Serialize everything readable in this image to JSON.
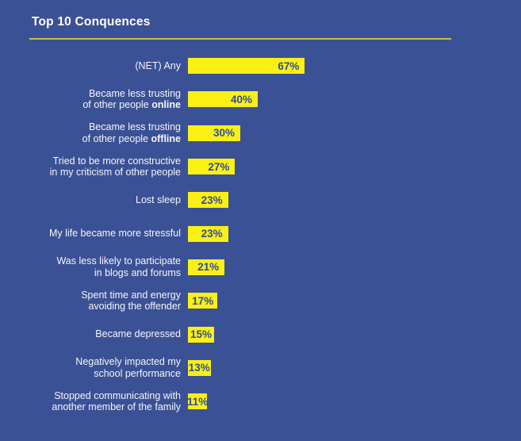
{
  "colors": {
    "background": "#3B5195",
    "bar": "#FAF013",
    "value_text": "#2F4D9B",
    "label_text": "#FFFFFF",
    "title_underline": "#C9BF3B"
  },
  "chart_data": {
    "type": "bar",
    "orientation": "horizontal",
    "title": "Top 10 Conquences",
    "xlabel": "",
    "ylabel": "",
    "xlim": [
      0,
      100
    ],
    "grid": false,
    "legend": false,
    "value_suffix": "%",
    "categories": [
      "(NET) Any",
      "Became less trusting of other people online",
      "Became less trusting of other people offline",
      "Tried to be more constructive in my criticism of other people",
      "Lost sleep",
      "My life became more stressful",
      "Was less likely to participate in blogs and forums",
      "Spent time and energy avoiding the offender",
      "Became depressed",
      "Negatively impacted my school performance",
      "Stopped communicating with another member of the family"
    ],
    "values": [
      67,
      40,
      30,
      27,
      23,
      23,
      21,
      17,
      15,
      13,
      11
    ],
    "rows": [
      {
        "label_lines": [
          [
            {
              "text": "(NET) Any"
            }
          ]
        ],
        "value": 67,
        "value_label": "67%"
      },
      {
        "label_lines": [
          [
            {
              "text": "Became less trusting"
            }
          ],
          [
            {
              "text": "of other people "
            },
            {
              "text": "online",
              "bold": true
            }
          ]
        ],
        "value": 40,
        "value_label": "40%"
      },
      {
        "label_lines": [
          [
            {
              "text": "Became less trusting"
            }
          ],
          [
            {
              "text": "of other people "
            },
            {
              "text": "offline",
              "bold": true
            }
          ]
        ],
        "value": 30,
        "value_label": "30%"
      },
      {
        "label_lines": [
          [
            {
              "text": "Tried to be more constructive"
            }
          ],
          [
            {
              "text": "in my criticism of other people"
            }
          ]
        ],
        "value": 27,
        "value_label": "27%"
      },
      {
        "label_lines": [
          [
            {
              "text": "Lost sleep"
            }
          ]
        ],
        "value": 23,
        "value_label": "23%"
      },
      {
        "label_lines": [
          [
            {
              "text": "My life became more stressful"
            }
          ]
        ],
        "value": 23,
        "value_label": "23%"
      },
      {
        "label_lines": [
          [
            {
              "text": "Was less likely to participate"
            }
          ],
          [
            {
              "text": "in blogs and forums"
            }
          ]
        ],
        "value": 21,
        "value_label": "21%"
      },
      {
        "label_lines": [
          [
            {
              "text": "Spent time and energy"
            }
          ],
          [
            {
              "text": "avoiding the offender"
            }
          ]
        ],
        "value": 17,
        "value_label": "17%"
      },
      {
        "label_lines": [
          [
            {
              "text": "Became depressed"
            }
          ]
        ],
        "value": 15,
        "value_label": "15%"
      },
      {
        "label_lines": [
          [
            {
              "text": "Negatively impacted my"
            }
          ],
          [
            {
              "text": "school performance"
            }
          ]
        ],
        "value": 13,
        "value_label": "13%"
      },
      {
        "label_lines": [
          [
            {
              "text": "Stopped communicating with"
            }
          ],
          [
            {
              "text": "another member of the family"
            }
          ]
        ],
        "value": 11,
        "value_label": "11%"
      }
    ]
  }
}
